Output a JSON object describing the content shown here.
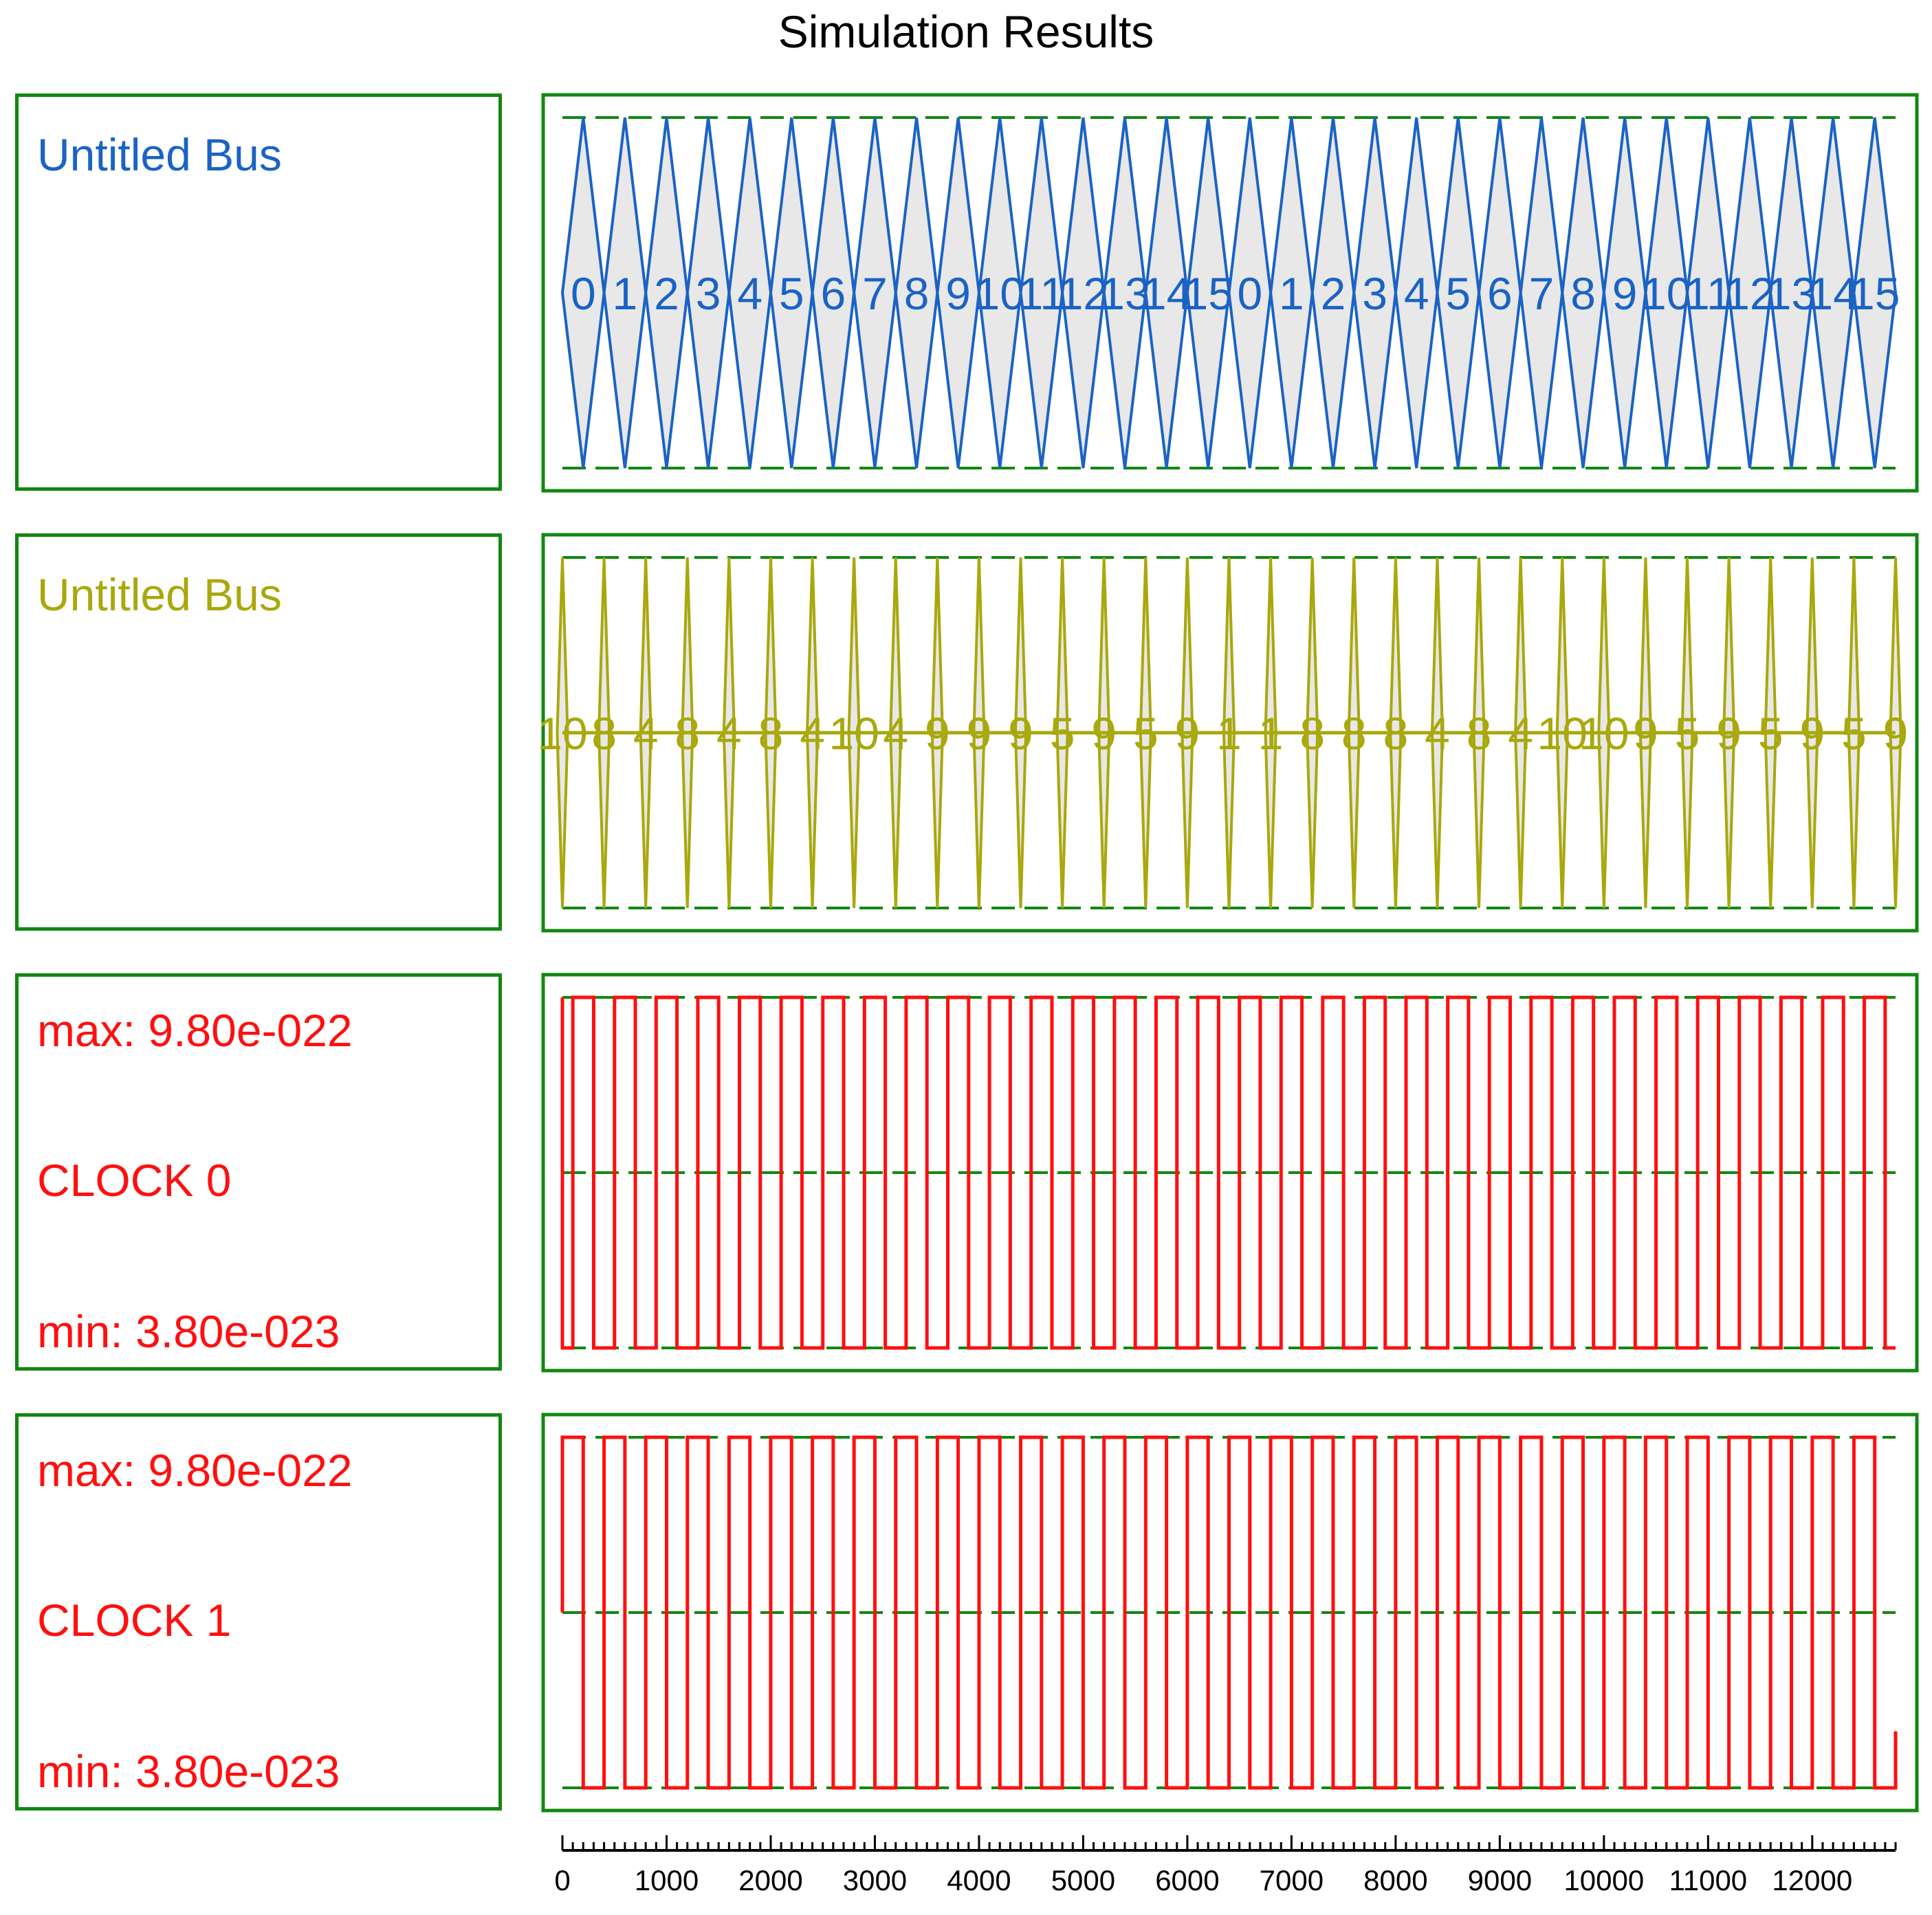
{
  "title": "Simulation Results",
  "colors": {
    "frame": "#118811",
    "guide": "#118811",
    "bus0": "#1a63c4",
    "bus1": "#a9a80c",
    "clock": "#ff0f0f",
    "bus_fill": "#e8e8e8",
    "axis": "#000000"
  },
  "signals": [
    {
      "kind": "bus",
      "name": "Untitled Bus",
      "color_key": "bus0"
    },
    {
      "kind": "bus",
      "name": "Untitled Bus",
      "color_key": "bus1"
    },
    {
      "kind": "clock",
      "name": "CLOCK 0",
      "max_label": "max: 9.80e-022",
      "min_label": "min: 3.80e-023",
      "color_key": "clock"
    },
    {
      "kind": "clock",
      "name": "CLOCK 1",
      "max_label": "max: 9.80e-022",
      "min_label": "min: 3.80e-023",
      "color_key": "clock"
    }
  ],
  "chart_data": {
    "type": "line",
    "title": "Simulation Results",
    "x_range": [
      0,
      12800
    ],
    "x_ticks": [
      0,
      1000,
      2000,
      3000,
      4000,
      5000,
      6000,
      7000,
      8000,
      9000,
      10000,
      11000,
      12000
    ],
    "x_minor_step": 100,
    "series": [
      {
        "name": "Untitled Bus",
        "type": "bus",
        "values": [
          "0",
          "1",
          "2",
          "3",
          "4",
          "5",
          "6",
          "7",
          "8",
          "9",
          "10",
          "11",
          "12",
          "13",
          "14",
          "15",
          "0",
          "1",
          "2",
          "3",
          "4",
          "5",
          "6",
          "7",
          "8",
          "9",
          "10",
          "11",
          "12",
          "13",
          "14",
          "15"
        ],
        "start": 0,
        "period": 400
      },
      {
        "name": "Untitled Bus",
        "type": "bus",
        "values": [
          "10",
          "8",
          "4",
          "8",
          "4",
          "8",
          "4",
          "10",
          "4",
          "9",
          "9",
          "9",
          "5",
          "9",
          "5",
          "9",
          "1",
          "1",
          "8",
          "8",
          "8",
          "4",
          "8",
          "4",
          "10",
          "10",
          "9",
          "5",
          "9",
          "5",
          "9",
          "5",
          "9"
        ],
        "start": 0,
        "period": 400,
        "pulse_width": 100
      },
      {
        "name": "CLOCK 0",
        "type": "clock",
        "max": 9.8e-22,
        "min": 3.8e-23,
        "edges": [
          0,
          100,
          300,
          500,
          700,
          900,
          1100,
          1300,
          1500,
          1700,
          1900,
          2100,
          2300,
          2500,
          2700,
          2900,
          3100,
          3300,
          3500,
          3700,
          3900,
          4100,
          4300,
          4500,
          4700,
          4900,
          5100,
          5300,
          5500,
          5700,
          5900,
          6100,
          6300,
          6500,
          6700,
          6900,
          7100,
          7300,
          7500,
          7700,
          7900,
          8100,
          8300,
          8500,
          8700,
          8900,
          9100,
          9300,
          9500,
          9700,
          9900,
          10100,
          10300,
          10500,
          10700,
          10900,
          11100,
          11300,
          11500,
          11700,
          11900,
          12100,
          12300,
          12500,
          12700
        ],
        "initial": "high"
      },
      {
        "name": "CLOCK 1",
        "type": "clock",
        "max": 9.8e-22,
        "min": 3.8e-23,
        "edges": [
          200,
          400,
          600,
          800,
          1000,
          1200,
          1400,
          1600,
          1800,
          2000,
          2200,
          2400,
          2600,
          2800,
          3000,
          3200,
          3400,
          3600,
          3800,
          4000,
          4200,
          4400,
          4600,
          4800,
          5000,
          5200,
          5400,
          5600,
          5800,
          6000,
          6200,
          6400,
          6600,
          6800,
          7000,
          7200,
          7400,
          7600,
          7800,
          8000,
          8200,
          8400,
          8600,
          8800,
          9000,
          9200,
          9400,
          9600,
          9800,
          10000,
          10200,
          10400,
          10600,
          10800,
          11000,
          11200,
          11400,
          11600,
          11800,
          12000,
          12200,
          12400,
          12600
        ],
        "initial": "high",
        "start_level": "mid",
        "end_value": 1.9e-22
      }
    ]
  }
}
